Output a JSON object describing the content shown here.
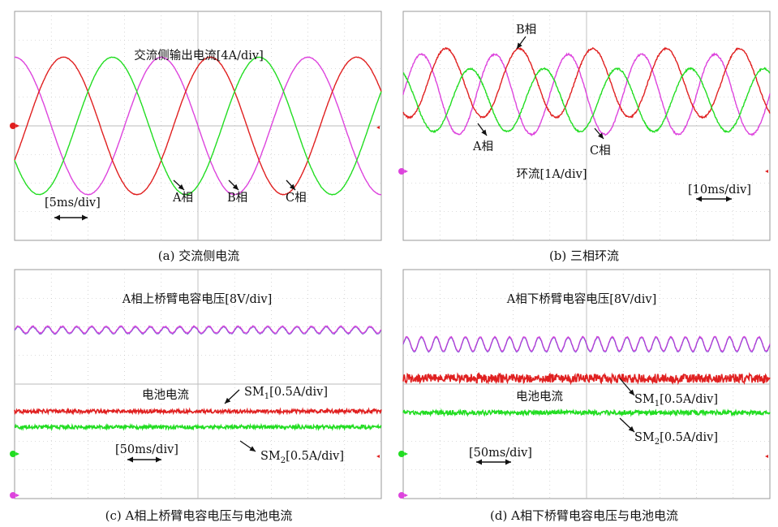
{
  "colors": {
    "red": "#e02020",
    "green": "#22dd22",
    "magenta": "#dd44dd",
    "grid": "#bbbbbb",
    "frame": "#9a9a9a"
  },
  "panels": {
    "a": {
      "caption": "(a) 交流侧电流",
      "title": "交流侧输出电流[4A/div]",
      "labels": {
        "A": "A相",
        "B": "B相",
        "C": "C相"
      },
      "timebase": "[5ms/div]"
    },
    "b": {
      "caption": "(b) 三相环流",
      "title": "环流[1A/div]",
      "labels": {
        "A": "A相",
        "B": "B相",
        "C": "C相"
      },
      "timebase": "[10ms/div]"
    },
    "c": {
      "caption": "(c) A相上桥臂电容电压与电池电流",
      "title": "A相上桥臂电容电压[8V/div]",
      "battery_label": "电池电流",
      "sm1": {
        "name": "SM",
        "sub": "1",
        "scale": "[0.5A/div]"
      },
      "sm2": {
        "name": "SM",
        "sub": "2",
        "scale": "[0.5A/div]"
      },
      "timebase": "[50ms/div]"
    },
    "d": {
      "caption": "(d) A相下桥臂电容电压与电池电流",
      "title": "A相下桥臂电容电压[8V/div]",
      "battery_label": "电池电流",
      "sm1": {
        "name": "SM",
        "sub": "1",
        "scale": "[0.5A/div]"
      },
      "sm2": {
        "name": "SM",
        "sub": "2",
        "scale": "[0.5A/div]"
      },
      "timebase": "[50ms/div]"
    }
  },
  "chart_data": [
    {
      "type": "line",
      "panel": "a",
      "title": "交流侧输出电流[4A/div]",
      "xlabel": "[5ms/div]",
      "x_unit": "ms",
      "x_range": [
        0,
        50
      ],
      "y_unit": "A",
      "y_range": [
        -16,
        16
      ],
      "grid": true,
      "series": [
        {
          "name": "A相",
          "color": "#dd44dd",
          "waveform": "sine",
          "amplitude": 9.6,
          "frequency_hz": 50,
          "phase_deg": 90
        },
        {
          "name": "B相",
          "color": "#e02020",
          "waveform": "sine",
          "amplitude": 9.6,
          "frequency_hz": 50,
          "phase_deg": 330
        },
        {
          "name": "C相",
          "color": "#22dd22",
          "waveform": "sine",
          "amplitude": 9.6,
          "frequency_hz": 50,
          "phase_deg": 210
        }
      ]
    },
    {
      "type": "line",
      "panel": "b",
      "title": "环流[1A/div]",
      "xlabel": "[10ms/div]",
      "x_unit": "ms",
      "x_range": [
        0,
        100
      ],
      "y_unit": "A",
      "y_range": [
        -4,
        4
      ],
      "grid": true,
      "series": [
        {
          "name": "A相",
          "color": "#dd44dd",
          "waveform": "sine",
          "dc_offset": 1.1,
          "amplitude": 1.4,
          "frequency_hz": 50,
          "phase_deg": 0
        },
        {
          "name": "B相",
          "color": "#e02020",
          "waveform": "sine",
          "dc_offset": 1.5,
          "amplitude": 1.2,
          "frequency_hz": 50,
          "phase_deg": 240
        },
        {
          "name": "C相",
          "color": "#22dd22",
          "waveform": "sine",
          "dc_offset": 0.9,
          "amplitude": 1.1,
          "frequency_hz": 50,
          "phase_deg": 120
        }
      ]
    },
    {
      "type": "line",
      "panel": "c",
      "title": "A相上桥臂电容电压[8V/div]",
      "xlabel": "[50ms/div]",
      "x_unit": "ms",
      "x_range": [
        0,
        500
      ],
      "grid": true,
      "series": [
        {
          "name": "A相上桥臂电容电压",
          "color": "#dd44dd",
          "waveform": "ripple",
          "level_div": 1.9,
          "ripple_div": 0.12,
          "cycles": 25
        },
        {
          "name": "SM1",
          "color": "#e02020",
          "waveform": "noisy_dc",
          "level_div": -0.95,
          "noise_div": 0.05
        },
        {
          "name": "SM2",
          "color": "#22dd22",
          "waveform": "noisy_dc",
          "level_div": -1.5,
          "noise_div": 0.05
        }
      ]
    },
    {
      "type": "line",
      "panel": "d",
      "title": "A相下桥臂电容电压[8V/div]",
      "xlabel": "[50ms/div]",
      "x_unit": "ms",
      "x_range": [
        0,
        500
      ],
      "grid": true,
      "series": [
        {
          "name": "A相下桥臂电容电压",
          "color": "#dd44dd",
          "waveform": "ripple",
          "level_div": 1.4,
          "ripple_div": 0.25,
          "cycles": 25
        },
        {
          "name": "SM1",
          "color": "#e02020",
          "waveform": "noisy_dc",
          "level_div": 0.2,
          "noise_div": 0.12
        },
        {
          "name": "SM2",
          "color": "#22dd22",
          "waveform": "noisy_dc",
          "level_div": -1.0,
          "noise_div": 0.06
        }
      ]
    }
  ]
}
